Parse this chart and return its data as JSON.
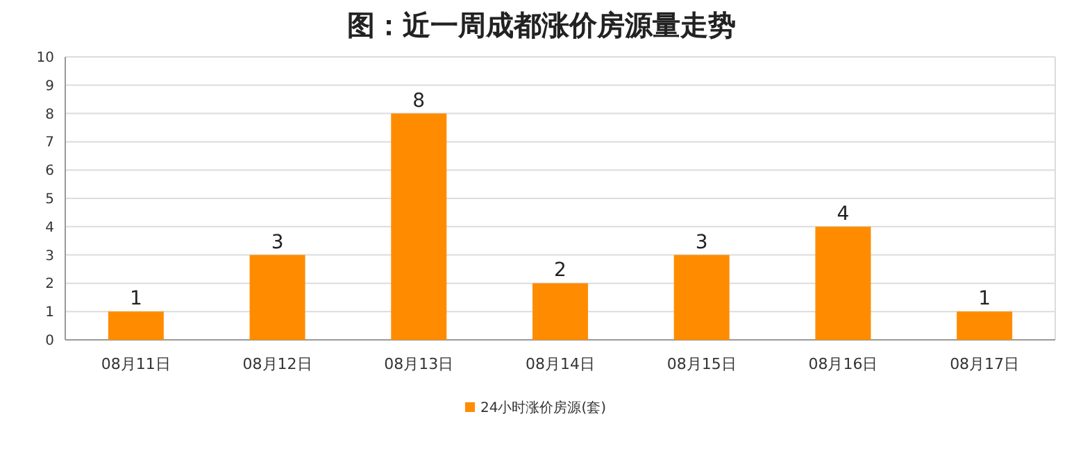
{
  "chart_data": {
    "type": "bar",
    "title": "图：近一周成都涨价房源量走势",
    "categories": [
      "08月11日",
      "08月12日",
      "08月13日",
      "08月14日",
      "08月15日",
      "08月16日",
      "08月17日"
    ],
    "series": [
      {
        "name": "24小时涨价房源(套)",
        "color": "#ff8c00",
        "values": [
          1,
          3,
          8,
          2,
          3,
          4,
          1
        ]
      }
    ],
    "ylim": [
      0,
      10
    ],
    "yticks": [
      0,
      1,
      2,
      3,
      4,
      5,
      6,
      7,
      8,
      9,
      10
    ],
    "grid": "y",
    "legend": "bottom",
    "data_labels": true
  }
}
